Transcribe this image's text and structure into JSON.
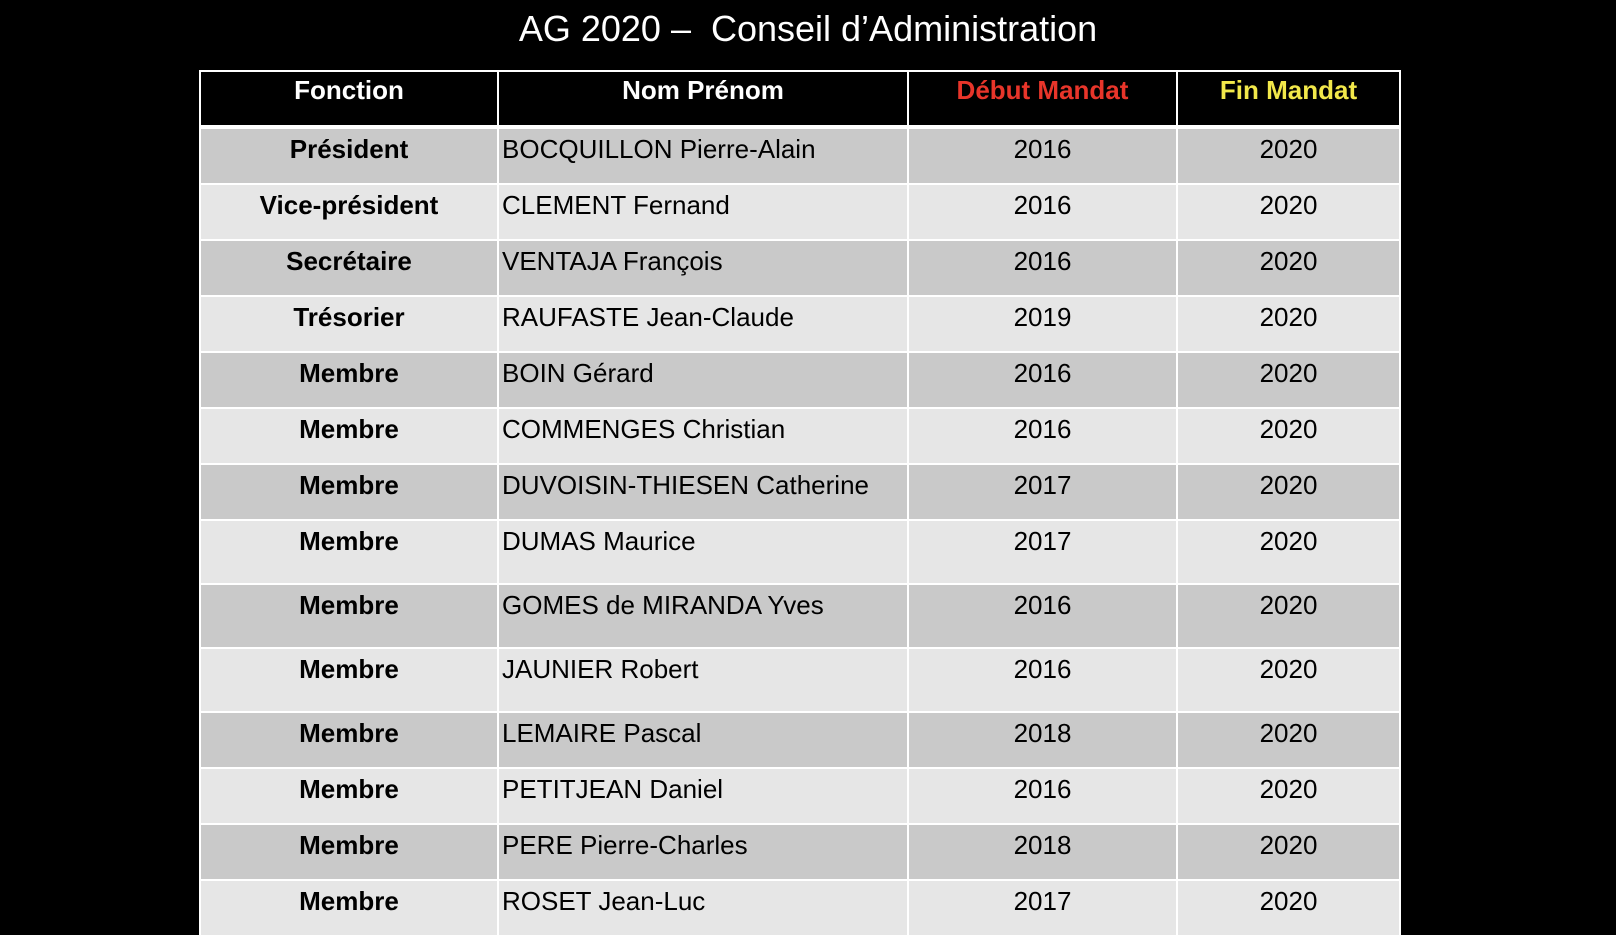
{
  "title": "AG 2020 –  Conseil d’Administration",
  "table": {
    "headers": {
      "fonction": "Fonction",
      "nom": "Nom Prénom",
      "debut": "Début Mandat",
      "fin": "Fin Mandat"
    },
    "rows": [
      {
        "fonction": "Président",
        "nom": "BOCQUILLON Pierre-Alain",
        "debut": "2016",
        "fin": "2020"
      },
      {
        "fonction": "Vice-président",
        "nom": "CLEMENT Fernand",
        "debut": "2016",
        "fin": "2020"
      },
      {
        "fonction": "Secrétaire",
        "nom": "VENTAJA François",
        "debut": "2016",
        "fin": "2020"
      },
      {
        "fonction": "Trésorier",
        "nom": "RAUFASTE Jean-Claude",
        "debut": "2019",
        "fin": "2020"
      },
      {
        "fonction": "Membre",
        "nom": "BOIN Gérard",
        "debut": "2016",
        "fin": "2020"
      },
      {
        "fonction": "Membre",
        "nom": "COMMENGES Christian",
        "debut": "2016",
        "fin": "2020"
      },
      {
        "fonction": "Membre",
        "nom": "DUVOISIN-THIESEN Catherine",
        "debut": "2017",
        "fin": "2020"
      },
      {
        "fonction": "Membre",
        "nom": "DUMAS Maurice",
        "debut": "2017",
        "fin": "2020"
      },
      {
        "fonction": "Membre",
        "nom": "GOMES de MIRANDA Yves",
        "debut": "2016",
        "fin": "2020"
      },
      {
        "fonction": "Membre",
        "nom": "JAUNIER Robert",
        "debut": "2016",
        "fin": "2020"
      },
      {
        "fonction": "Membre",
        "nom": "LEMAIRE Pascal",
        "debut": "2018",
        "fin": "2020"
      },
      {
        "fonction": "Membre",
        "nom": "PETITJEAN Daniel",
        "debut": "2016",
        "fin": "2020"
      },
      {
        "fonction": "Membre",
        "nom": "PERE Pierre-Charles",
        "debut": "2018",
        "fin": "2020"
      },
      {
        "fonction": "Membre",
        "nom": "ROSET Jean-Luc",
        "debut": "2017",
        "fin": "2020"
      }
    ]
  },
  "colors": {
    "background": "#000000",
    "header_text": "#ffffff",
    "debut_header": "#e8352a",
    "fin_header": "#f2e84a",
    "row_dark": "#c9c9c9",
    "row_light": "#e6e6e6"
  }
}
